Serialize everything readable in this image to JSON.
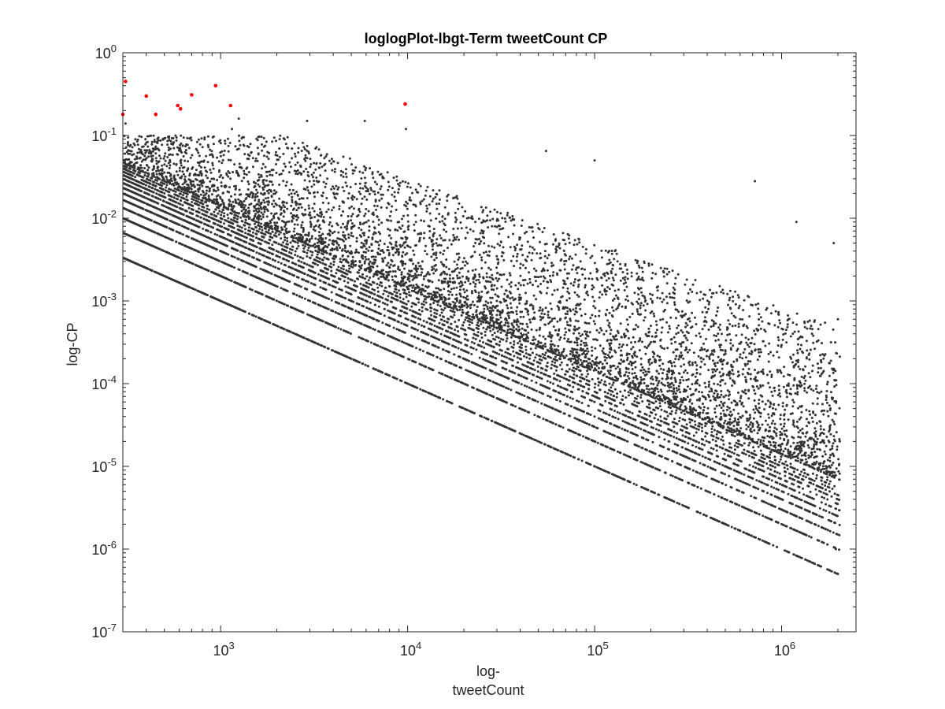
{
  "chart_data": {
    "type": "scatter",
    "title": "loglogPlot-lbgt-Term tweetCount CP",
    "xlabel_line1": "log-",
    "xlabel_line2": "tweetCount",
    "ylabel": "log-CP",
    "xscale": "log",
    "yscale": "log",
    "xlim": [
      300,
      2500000
    ],
    "ylim": [
      1e-07,
      1
    ],
    "xticks": [
      {
        "value": 1000,
        "base": "10",
        "exp": "3"
      },
      {
        "value": 10000,
        "base": "10",
        "exp": "4"
      },
      {
        "value": 100000,
        "base": "10",
        "exp": "5"
      },
      {
        "value": 1000000,
        "base": "10",
        "exp": "6"
      }
    ],
    "yticks": [
      {
        "value": 1e-07,
        "base": "10",
        "exp": "-7"
      },
      {
        "value": 1e-06,
        "base": "10",
        "exp": "-6"
      },
      {
        "value": 1e-05,
        "base": "10",
        "exp": "-5"
      },
      {
        "value": 0.0001,
        "base": "10",
        "exp": "-4"
      },
      {
        "value": 0.001,
        "base": "10",
        "exp": "-3"
      },
      {
        "value": 0.01,
        "base": "10",
        "exp": "-2"
      },
      {
        "value": 0.1,
        "base": "10",
        "exp": "-1"
      },
      {
        "value": 1,
        "base": "10",
        "exp": "0"
      }
    ],
    "grid": false,
    "box": true,
    "series": [
      {
        "color": "#333333",
        "pattern": "power-law bands CP = k / tweetCount for k = 1..14, plus scattered points above the bands",
        "band_multipliers": [
          1,
          2,
          3,
          4,
          5,
          6,
          7,
          8,
          9,
          10,
          11,
          12,
          13,
          14
        ],
        "sample_points": [
          [
            310,
            0.14
          ],
          [
            320,
            0.06
          ],
          [
            350,
            0.09
          ],
          [
            600,
            0.07
          ],
          [
            1150,
            0.12
          ],
          [
            1250,
            0.16
          ],
          [
            2900,
            0.15
          ],
          [
            5900,
            0.15
          ],
          [
            9800,
            0.12
          ],
          [
            55000,
            0.065
          ],
          [
            100000,
            0.05
          ],
          [
            720000,
            0.028
          ],
          [
            1200000,
            0.009
          ],
          [
            1900000,
            0.005
          ],
          [
            2000000,
            0.0006
          ],
          [
            2000000,
            5e-07
          ],
          [
            1950000,
            1e-06
          ],
          [
            1000000,
            3e-06
          ],
          [
            500000,
            0.0001
          ],
          [
            30000,
            0.001
          ],
          [
            12000,
            0.003
          ],
          [
            200000,
            0.0005
          ]
        ]
      },
      {
        "color": "#ff0000",
        "pattern": "outlier points",
        "points": [
          [
            300,
            0.18
          ],
          [
            310,
            0.45
          ],
          [
            400,
            0.3
          ],
          [
            450,
            0.18
          ],
          [
            590,
            0.23
          ],
          [
            610,
            0.21
          ],
          [
            700,
            0.31
          ],
          [
            940,
            0.4
          ],
          [
            1130,
            0.23
          ],
          [
            9700,
            0.24
          ]
        ]
      }
    ]
  }
}
